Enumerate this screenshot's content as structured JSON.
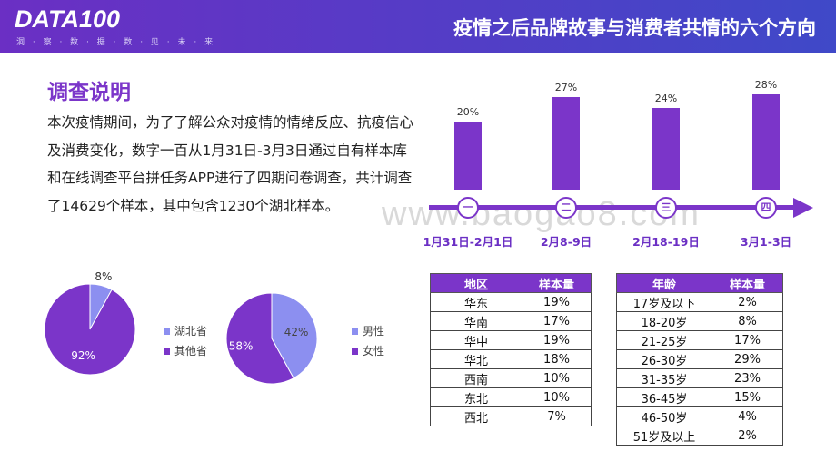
{
  "header": {
    "logo": "DATA100",
    "logo_sub": "洞 · 察 · 数 · 据    · 数 · 见 · 未 · 来",
    "title": "疫情之后品牌故事与消费者共情的六个方向"
  },
  "intro": {
    "heading": "调查说明",
    "text": "本次疫情期间，为了了解公众对疫情的情绪反应、抗疫信心及消费变化，数字一百从1月31日-3月3日通过自有样本库和在线调查平台拼任务APP进行了四期问卷调查，共计调查了14629个样本，其中包含1230个湖北样本。"
  },
  "watermark": "www.baogao8.com",
  "timeline": {
    "periods": [
      {
        "node": "一",
        "date": "1月31日-2月1日",
        "value": 20,
        "label": "20%"
      },
      {
        "node": "二",
        "date": "2月8-9日",
        "value": 27,
        "label": "27%"
      },
      {
        "node": "三",
        "date": "2月18-19日",
        "value": 24,
        "label": "24%"
      },
      {
        "node": "四",
        "date": "3月1-3日",
        "value": 28,
        "label": "28%"
      }
    ]
  },
  "pie_region": {
    "slices": [
      {
        "name": "湖北省",
        "value": 8,
        "label": "8%",
        "color": "#8c8ff0"
      },
      {
        "name": "其他省",
        "value": 92,
        "label": "92%",
        "color": "#7b35c9"
      }
    ]
  },
  "pie_gender": {
    "slices": [
      {
        "name": "男性",
        "value": 42,
        "label": "42%",
        "color": "#8c8ff0"
      },
      {
        "name": "女性",
        "value": 58,
        "label": "58%",
        "color": "#7b35c9"
      }
    ]
  },
  "region_table": {
    "headers": [
      "地区",
      "样本量"
    ],
    "rows": [
      [
        "华东",
        "19%"
      ],
      [
        "华南",
        "17%"
      ],
      [
        "华中",
        "19%"
      ],
      [
        "华北",
        "18%"
      ],
      [
        "西南",
        "10%"
      ],
      [
        "东北",
        "10%"
      ],
      [
        "西北",
        "7%"
      ]
    ]
  },
  "age_table": {
    "headers": [
      "年龄",
      "样本量"
    ],
    "rows": [
      [
        "17岁及以下",
        "2%"
      ],
      [
        "18-20岁",
        "8%"
      ],
      [
        "21-25岁",
        "17%"
      ],
      [
        "26-30岁",
        "29%"
      ],
      [
        "31-35岁",
        "23%"
      ],
      [
        "36-45岁",
        "15%"
      ],
      [
        "46-50岁",
        "4%"
      ],
      [
        "51岁及以上",
        "2%"
      ]
    ]
  }
}
